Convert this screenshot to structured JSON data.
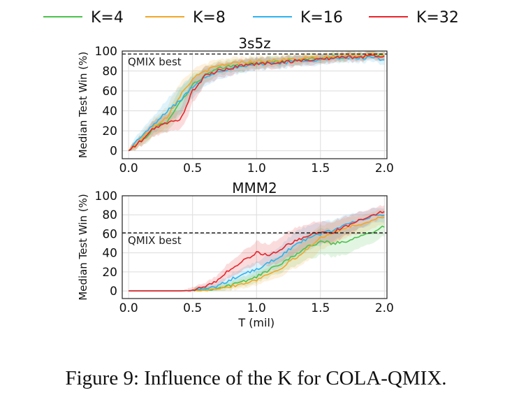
{
  "legend": [
    {
      "label": "K=4",
      "color": "#4cc24c"
    },
    {
      "label": "K=8",
      "color": "#f0a72a"
    },
    {
      "label": "K=16",
      "color": "#2fb3ee"
    },
    {
      "label": "K=32",
      "color": "#e8252b"
    }
  ],
  "caption": "Figure 9: Influence of the K for COLA-QMIX.",
  "chart_data": [
    {
      "type": "line",
      "title": "3s5z",
      "xlabel": "",
      "ylabel": "Median Test Win (%)",
      "xlim": [
        -0.05,
        2.02
      ],
      "ylim": [
        -8,
        100
      ],
      "xticks": [
        "0.0",
        "0.5",
        "1.0",
        "1.5",
        "2.0"
      ],
      "yticks": [
        "0",
        "20",
        "40",
        "60",
        "80",
        "100"
      ],
      "grid": true,
      "reference_line": {
        "label": "QMIX best",
        "y": 97
      },
      "x": [
        0.0,
        0.1,
        0.2,
        0.3,
        0.4,
        0.5,
        0.6,
        0.7,
        0.8,
        0.9,
        1.0,
        1.1,
        1.2,
        1.3,
        1.4,
        1.5,
        1.6,
        1.7,
        1.8,
        1.9,
        2.0
      ],
      "series": [
        {
          "name": "K=4",
          "values": [
            0,
            10,
            22,
            30,
            48,
            66,
            76,
            82,
            85,
            86,
            88,
            89,
            90,
            91,
            92,
            93,
            94,
            94,
            95,
            96,
            95
          ]
        },
        {
          "name": "K=8",
          "values": [
            0,
            12,
            25,
            34,
            55,
            72,
            80,
            85,
            88,
            89,
            90,
            90,
            91,
            92,
            93,
            93,
            94,
            95,
            95,
            96,
            95
          ]
        },
        {
          "name": "K=16",
          "values": [
            0,
            15,
            26,
            40,
            50,
            64,
            74,
            80,
            82,
            84,
            87,
            88,
            88,
            90,
            91,
            91,
            92,
            93,
            93,
            94,
            91
          ]
        },
        {
          "name": "K=32",
          "values": [
            0,
            10,
            23,
            28,
            30,
            60,
            75,
            80,
            83,
            86,
            87,
            88,
            89,
            90,
            91,
            92,
            93,
            94,
            94,
            95,
            95
          ]
        }
      ]
    },
    {
      "type": "line",
      "title": "MMM2",
      "xlabel": "T (mil)",
      "ylabel": "Median Test Win (%)",
      "xlim": [
        -0.05,
        2.02
      ],
      "ylim": [
        -8,
        100
      ],
      "xticks": [
        "0.0",
        "0.5",
        "1.0",
        "1.5",
        "2.0"
      ],
      "yticks": [
        "0",
        "20",
        "40",
        "60",
        "80",
        "100"
      ],
      "grid": true,
      "reference_line": {
        "label": "QMIX best",
        "y": 61
      },
      "x": [
        0.0,
        0.1,
        0.2,
        0.3,
        0.4,
        0.5,
        0.6,
        0.7,
        0.8,
        0.9,
        1.0,
        1.1,
        1.2,
        1.3,
        1.4,
        1.5,
        1.6,
        1.7,
        1.8,
        1.9,
        2.0
      ],
      "series": [
        {
          "name": "K=4",
          "values": [
            0,
            0,
            0,
            0,
            0,
            0.5,
            1.5,
            3,
            6,
            10,
            15,
            22,
            30,
            38,
            46,
            52,
            50,
            52,
            58,
            62,
            68
          ]
        },
        {
          "name": "K=8",
          "values": [
            0,
            0,
            0,
            0,
            0,
            0.5,
            1.5,
            3,
            5,
            8,
            12,
            18,
            25,
            34,
            44,
            56,
            62,
            66,
            70,
            74,
            78
          ]
        },
        {
          "name": "K=16",
          "values": [
            0,
            0,
            0,
            0,
            0,
            0.5,
            2,
            5,
            12,
            18,
            22,
            30,
            38,
            48,
            55,
            60,
            64,
            70,
            74,
            78,
            80
          ]
        },
        {
          "name": "K=32",
          "values": [
            0,
            0,
            0,
            0,
            0,
            1,
            4,
            12,
            24,
            32,
            40,
            38,
            45,
            52,
            58,
            62,
            62,
            68,
            74,
            80,
            84
          ]
        }
      ]
    }
  ]
}
